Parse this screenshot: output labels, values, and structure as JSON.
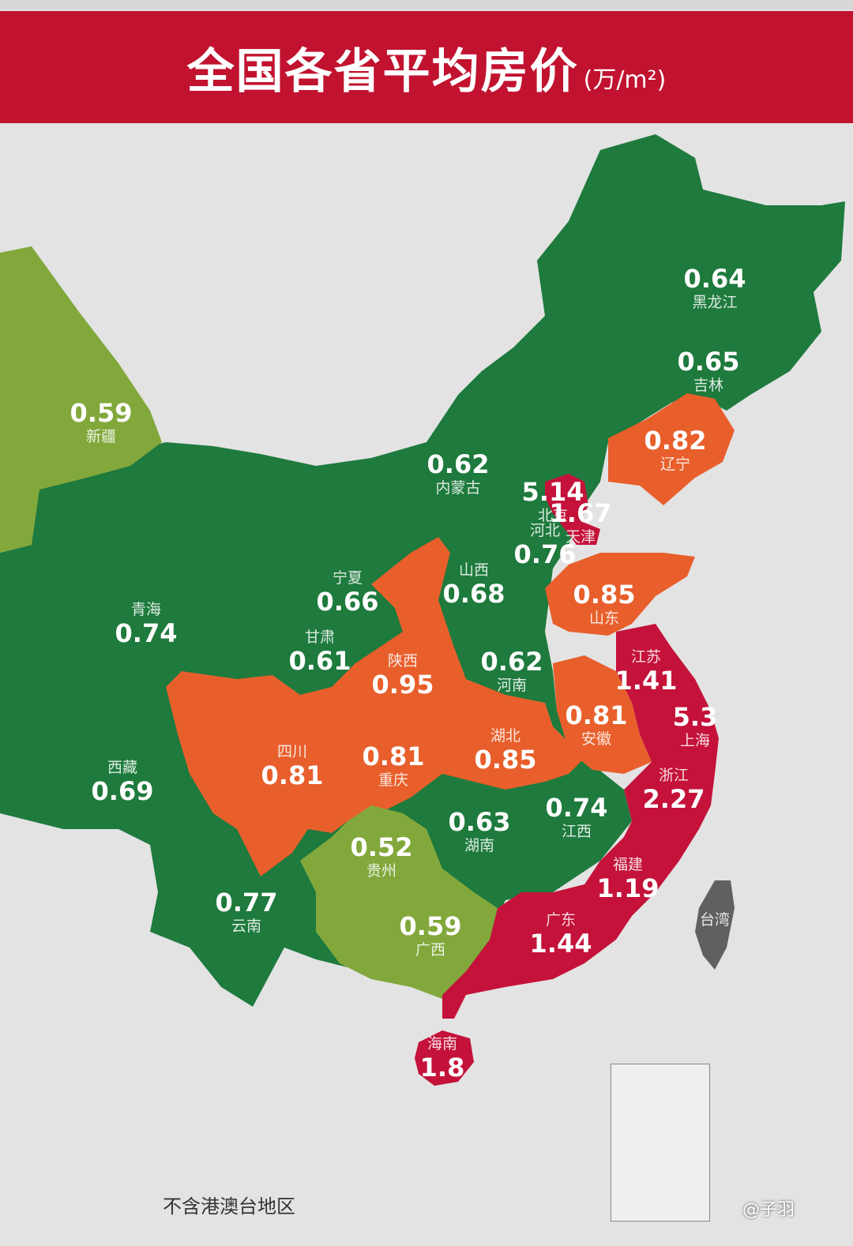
{
  "title": "全国各省平均房价",
  "unit": "(万/m²)",
  "footnote": "不含港澳台地区",
  "credit": "@子羽",
  "colors": {
    "banner": "#c1122f",
    "dark_green": "#1e7a3d",
    "light_green": "#82a83c",
    "orange": "#e85f2c",
    "red": "#c4123a",
    "grey": "#606060"
  },
  "provinces": [
    {
      "name": "黑龙江",
      "value": "0.64",
      "class": "dark_green"
    },
    {
      "name": "吉林",
      "value": "0.65",
      "class": "dark_green"
    },
    {
      "name": "辽宁",
      "value": "0.82",
      "class": "orange"
    },
    {
      "name": "内蒙古",
      "value": "0.62",
      "class": "dark_green"
    },
    {
      "name": "北京",
      "value": "5.14",
      "class": "red"
    },
    {
      "name": "天津",
      "value": "1.67",
      "class": "red"
    },
    {
      "name": "河北",
      "value": "0.76",
      "class": "dark_green"
    },
    {
      "name": "山西",
      "value": "0.68",
      "class": "dark_green"
    },
    {
      "name": "山东",
      "value": "0.85",
      "class": "orange"
    },
    {
      "name": "新疆",
      "value": "0.59",
      "class": "light_green"
    },
    {
      "name": "青海",
      "value": "0.74",
      "class": "dark_green"
    },
    {
      "name": "宁夏",
      "value": "0.66",
      "class": "dark_green"
    },
    {
      "name": "甘肃",
      "value": "0.61",
      "class": "dark_green"
    },
    {
      "name": "陕西",
      "value": "0.95",
      "class": "orange"
    },
    {
      "name": "河南",
      "value": "0.62",
      "class": "dark_green"
    },
    {
      "name": "江苏",
      "value": "1.41",
      "class": "red"
    },
    {
      "name": "上海",
      "value": "5.3",
      "class": "red"
    },
    {
      "name": "安徽",
      "value": "0.81",
      "class": "orange"
    },
    {
      "name": "西藏",
      "value": "0.69",
      "class": "dark_green"
    },
    {
      "name": "四川",
      "value": "0.81",
      "class": "orange"
    },
    {
      "name": "重庆",
      "value": "0.81",
      "class": "orange"
    },
    {
      "name": "湖北",
      "value": "0.85",
      "class": "orange"
    },
    {
      "name": "浙江",
      "value": "2.27",
      "class": "red"
    },
    {
      "name": "湖南",
      "value": "0.63",
      "class": "dark_green"
    },
    {
      "name": "江西",
      "value": "0.74",
      "class": "dark_green"
    },
    {
      "name": "贵州",
      "value": "0.52",
      "class": "light_green"
    },
    {
      "name": "福建",
      "value": "1.19",
      "class": "red"
    },
    {
      "name": "云南",
      "value": "0.77",
      "class": "dark_green"
    },
    {
      "name": "广西",
      "value": "0.59",
      "class": "light_green"
    },
    {
      "name": "广东",
      "value": "1.44",
      "class": "red"
    },
    {
      "name": "海南",
      "value": "1.8",
      "class": "red"
    },
    {
      "name": "台湾",
      "value": "",
      "class": "grey"
    }
  ]
}
